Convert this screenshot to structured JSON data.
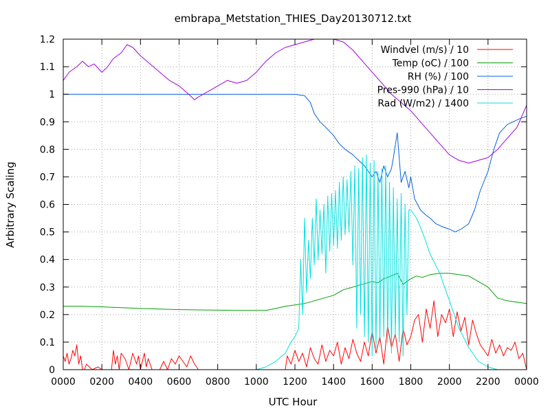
{
  "chart_data": {
    "type": "line",
    "title": "embrapa_Metstation_THIES_Day20130712.txt",
    "xlabel": "UTC Hour",
    "ylabel": "Arbitrary Scaling",
    "xlim": [
      0,
      24
    ],
    "ylim": [
      0,
      1.2
    ],
    "x_unit": "hours (UTC)",
    "x_tick_values": [
      0,
      2,
      4,
      6,
      8,
      10,
      12,
      14,
      16,
      18,
      20,
      22,
      24
    ],
    "x_tick_labels": [
      "0000",
      "0200",
      "0400",
      "0600",
      "0800",
      "1000",
      "1200",
      "1400",
      "1600",
      "1800",
      "2000",
      "2200",
      "0000"
    ],
    "y_tick_values": [
      0,
      0.1,
      0.2,
      0.3,
      0.4,
      0.5,
      0.6,
      0.7,
      0.8,
      0.9,
      1.0,
      1.1,
      1.2
    ],
    "y_tick_labels": [
      "0",
      "0.1",
      "0.2",
      "0.3",
      "0.4",
      "0.5",
      "0.6",
      "0.7",
      "0.8",
      "0.9",
      "1",
      "1.1",
      "1.2"
    ],
    "grid": true,
    "grid_style": "dotted",
    "legend_position": "top-right",
    "series": [
      {
        "name": "Windvel (m/s) / 10",
        "color": "#ff0000",
        "x": [
          0,
          0.1,
          0.2,
          0.3,
          0.4,
          0.5,
          0.6,
          0.7,
          0.8,
          0.9,
          1.0,
          1.1,
          1.2,
          1.5,
          1.8,
          2.0,
          2.1,
          2.2,
          2.5,
          2.6,
          2.7,
          2.8,
          2.9,
          3.0,
          3.2,
          3.4,
          3.6,
          3.8,
          3.9,
          4.0,
          4.1,
          4.2,
          4.3,
          4.4,
          4.6,
          5.0,
          5.2,
          5.4,
          5.6,
          5.8,
          6.0,
          6.2,
          6.4,
          6.6,
          6.8,
          7.0,
          7.2,
          7.4,
          8.0,
          10.0,
          11.5,
          11.6,
          11.8,
          12.0,
          12.2,
          12.4,
          12.6,
          12.8,
          13.0,
          13.2,
          13.4,
          13.6,
          13.8,
          14.0,
          14.2,
          14.4,
          14.6,
          14.8,
          15.0,
          15.2,
          15.4,
          15.6,
          15.8,
          16.0,
          16.2,
          16.4,
          16.6,
          16.8,
          17.0,
          17.2,
          17.4,
          17.6,
          17.8,
          18.0,
          18.2,
          18.4,
          18.6,
          18.8,
          19.0,
          19.2,
          19.4,
          19.6,
          19.8,
          20.0,
          20.2,
          20.4,
          20.6,
          20.8,
          21.0,
          21.2,
          21.4,
          21.6,
          21.8,
          22.0,
          22.2,
          22.4,
          22.6,
          22.8,
          23.0,
          23.2,
          23.4,
          23.6,
          23.8,
          24.0
        ],
        "values": [
          0.05,
          0.03,
          0.06,
          0.02,
          0.04,
          0.07,
          0.05,
          0.09,
          0.02,
          0.05,
          0.0,
          0.0,
          0.02,
          0.0,
          0.01,
          0.0,
          0.0,
          0.0,
          0.0,
          0.07,
          0.02,
          0.05,
          0.0,
          0.06,
          0.04,
          0.0,
          0.06,
          0.02,
          0.05,
          0.0,
          0.03,
          0.06,
          0.01,
          0.04,
          0.0,
          0.0,
          0.03,
          0.0,
          0.04,
          0.02,
          0.05,
          0.03,
          0.01,
          0.05,
          0.02,
          0.0,
          0.0,
          0.0,
          0.0,
          0.0,
          0.0,
          0.05,
          0.02,
          0.07,
          0.03,
          0.06,
          0.01,
          0.08,
          0.04,
          0.02,
          0.09,
          0.03,
          0.07,
          0.05,
          0.1,
          0.02,
          0.08,
          0.04,
          0.11,
          0.06,
          0.03,
          0.1,
          0.05,
          0.14,
          0.06,
          0.12,
          0.02,
          0.16,
          0.08,
          0.13,
          0.03,
          0.15,
          0.09,
          0.12,
          0.18,
          0.2,
          0.1,
          0.22,
          0.15,
          0.25,
          0.12,
          0.2,
          0.17,
          0.22,
          0.12,
          0.21,
          0.14,
          0.19,
          0.09,
          0.18,
          0.13,
          0.09,
          0.07,
          0.05,
          0.11,
          0.06,
          0.09,
          0.05,
          0.08,
          0.07,
          0.1,
          0.04,
          0.06,
          0.0
        ]
      },
      {
        "name": "Temp (oC) / 100",
        "color": "#00a000",
        "x": [
          0,
          1,
          2,
          3,
          4,
          5,
          6,
          7,
          8,
          9,
          10,
          10.5,
          11,
          11.5,
          12,
          12.5,
          13,
          13.5,
          14,
          14.5,
          15,
          15.5,
          16,
          16.3,
          16.6,
          17,
          17.3,
          17.6,
          18,
          18.3,
          18.6,
          19,
          19.5,
          20,
          20.5,
          21,
          21.5,
          22,
          22.5,
          23,
          23.5,
          24
        ],
        "values": [
          0.23,
          0.23,
          0.228,
          0.225,
          0.222,
          0.22,
          0.218,
          0.217,
          0.216,
          0.215,
          0.215,
          0.215,
          0.222,
          0.23,
          0.235,
          0.24,
          0.25,
          0.26,
          0.27,
          0.29,
          0.3,
          0.31,
          0.32,
          0.315,
          0.33,
          0.34,
          0.35,
          0.31,
          0.33,
          0.34,
          0.335,
          0.345,
          0.35,
          0.35,
          0.345,
          0.34,
          0.32,
          0.3,
          0.26,
          0.25,
          0.245,
          0.24
        ]
      },
      {
        "name": "RH (%) / 100",
        "color": "#0060e0",
        "x": [
          0,
          2,
          4,
          6,
          8,
          10,
          12,
          12.5,
          12.8,
          13,
          13.3,
          13.6,
          14,
          14.3,
          14.6,
          15,
          15.3,
          15.6,
          15.8,
          16,
          16.2,
          16.4,
          16.6,
          16.8,
          17,
          17.1,
          17.3,
          17.5,
          17.7,
          17.9,
          18,
          18.2,
          18.5,
          18.8,
          19,
          19.3,
          19.6,
          20,
          20.3,
          20.6,
          21,
          21.3,
          21.6,
          22,
          22.3,
          22.6,
          23,
          23.3,
          23.6,
          24
        ],
        "values": [
          1.0,
          1.0,
          1.0,
          1.0,
          1.0,
          1.0,
          1.0,
          0.995,
          0.97,
          0.93,
          0.9,
          0.88,
          0.85,
          0.82,
          0.8,
          0.78,
          0.76,
          0.74,
          0.72,
          0.7,
          0.72,
          0.68,
          0.74,
          0.7,
          0.73,
          0.77,
          0.86,
          0.68,
          0.72,
          0.66,
          0.7,
          0.62,
          0.58,
          0.56,
          0.55,
          0.53,
          0.52,
          0.51,
          0.5,
          0.51,
          0.53,
          0.58,
          0.65,
          0.72,
          0.8,
          0.86,
          0.89,
          0.9,
          0.91,
          0.92
        ]
      },
      {
        "name": "Pres-990 (hPa) / 10",
        "color": "#a000e0",
        "x": [
          0,
          0.3,
          0.7,
          1.0,
          1.3,
          1.6,
          2.0,
          2.3,
          2.6,
          3.0,
          3.3,
          3.6,
          4.0,
          4.5,
          5.0,
          5.5,
          6.0,
          6.5,
          6.8,
          7.0,
          7.5,
          8.0,
          8.5,
          9.0,
          9.5,
          10.0,
          10.5,
          11.0,
          11.5,
          12.0,
          12.5,
          13.0,
          13.5,
          14.0,
          14.5,
          15.0,
          15.5,
          16.0,
          16.5,
          17.0,
          17.5,
          18.0,
          18.5,
          19.0,
          19.5,
          20.0,
          20.5,
          21.0,
          21.5,
          22.0,
          22.5,
          23.0,
          23.5,
          24.0
        ],
        "values": [
          1.05,
          1.08,
          1.1,
          1.12,
          1.1,
          1.11,
          1.08,
          1.1,
          1.13,
          1.15,
          1.18,
          1.17,
          1.14,
          1.11,
          1.08,
          1.05,
          1.03,
          1.0,
          0.98,
          0.99,
          1.01,
          1.03,
          1.05,
          1.04,
          1.05,
          1.08,
          1.12,
          1.15,
          1.17,
          1.18,
          1.19,
          1.2,
          1.2,
          1.2,
          1.19,
          1.16,
          1.12,
          1.08,
          1.04,
          1.0,
          0.97,
          0.94,
          0.9,
          0.86,
          0.82,
          0.78,
          0.76,
          0.75,
          0.76,
          0.77,
          0.8,
          0.84,
          0.88,
          0.96
        ]
      },
      {
        "name": "Rad (W/m2) / 1400",
        "color": "#00e0e0",
        "x": [
          0,
          2,
          4,
          6,
          8,
          10,
          10.5,
          11,
          11.5,
          11.8,
          12.0,
          12.2,
          12.3,
          12.4,
          12.5,
          12.6,
          12.7,
          12.8,
          12.9,
          13.0,
          13.1,
          13.2,
          13.3,
          13.4,
          13.5,
          13.6,
          13.7,
          13.8,
          13.9,
          14.0,
          14.1,
          14.2,
          14.3,
          14.4,
          14.5,
          14.6,
          14.7,
          14.8,
          14.9,
          15.0,
          15.1,
          15.2,
          15.3,
          15.4,
          15.5,
          15.6,
          15.7,
          15.8,
          15.9,
          16.0,
          16.1,
          16.2,
          16.3,
          16.4,
          16.5,
          16.6,
          16.7,
          16.8,
          16.9,
          17.0,
          17.1,
          17.2,
          17.3,
          17.4,
          17.5,
          17.6,
          17.7,
          17.8,
          17.9,
          18.0,
          18.3,
          18.6,
          19.0,
          19.5,
          20.0,
          20.5,
          21.0,
          21.5,
          22.0,
          22.5,
          24.0
        ],
        "values": [
          0.0,
          0.0,
          0.0,
          0.0,
          0.0,
          0.0,
          0.01,
          0.03,
          0.06,
          0.1,
          0.12,
          0.15,
          0.4,
          0.2,
          0.55,
          0.28,
          0.47,
          0.33,
          0.55,
          0.38,
          0.62,
          0.4,
          0.58,
          0.42,
          0.6,
          0.35,
          0.63,
          0.43,
          0.64,
          0.45,
          0.65,
          0.44,
          0.68,
          0.47,
          0.7,
          0.49,
          0.69,
          0.5,
          0.72,
          0.38,
          0.74,
          0.15,
          0.73,
          0.2,
          0.77,
          0.12,
          0.78,
          0.1,
          0.75,
          0.05,
          0.76,
          0.08,
          0.72,
          0.1,
          0.73,
          0.12,
          0.74,
          0.1,
          0.68,
          0.06,
          0.66,
          0.12,
          0.62,
          0.1,
          0.64,
          0.05,
          0.6,
          0.2,
          0.58,
          0.58,
          0.55,
          0.5,
          0.42,
          0.35,
          0.25,
          0.15,
          0.08,
          0.03,
          0.01,
          0.0,
          0.0
        ]
      }
    ]
  }
}
